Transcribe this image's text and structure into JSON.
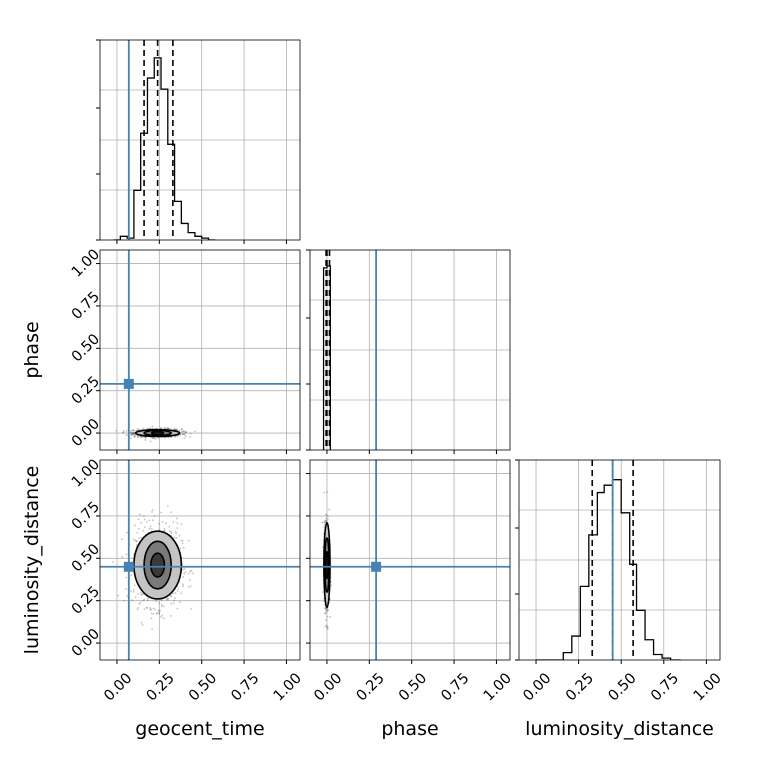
{
  "chart_data": {
    "type": "corner",
    "parameters": [
      "geocent_time",
      "phase",
      "luminosity_distance"
    ],
    "axis_labels": {
      "x": [
        "geocent_time",
        "phase",
        "luminosity_distance"
      ],
      "y": [
        "",
        "phase",
        "luminosity_distance"
      ]
    },
    "range": [
      -0.1,
      1.08
    ],
    "ticks": [
      0.0,
      0.25,
      0.5,
      0.75,
      1.0
    ],
    "tick_labels": [
      "0.00",
      "0.25",
      "0.50",
      "0.75",
      "1.00"
    ],
    "grid": true,
    "truth_color": "#4682b4",
    "truths": {
      "geocent_time": 0.07,
      "phase": 0.29,
      "luminosity_distance": 0.45
    },
    "histograms": {
      "geocent_time": {
        "bin_edges": [
          -0.02,
          0.02,
          0.06,
          0.1,
          0.14,
          0.18,
          0.22,
          0.26,
          0.3,
          0.34,
          0.38,
          0.42,
          0.46,
          0.5,
          0.54,
          0.58
        ],
        "heights": [
          0.0,
          0.02,
          0.01,
          0.27,
          0.58,
          0.88,
          0.99,
          0.82,
          0.52,
          0.21,
          0.09,
          0.04,
          0.02,
          0.01,
          0.0
        ],
        "quantiles": [
          0.16,
          0.24,
          0.33
        ]
      },
      "phase": {
        "bin_edges": [
          -0.02,
          0.0,
          0.02
        ],
        "heights": [
          0.99,
          1.0
        ],
        "quantiles": [
          -0.005,
          0.0,
          0.015
        ]
      },
      "luminosity_distance": {
        "bin_edges": [
          0.0,
          0.08,
          0.16,
          0.21,
          0.26,
          0.31,
          0.36,
          0.4,
          0.45,
          0.5,
          0.55,
          0.59,
          0.64,
          0.69,
          0.74,
          0.79,
          0.85
        ],
        "heights": [
          0.0,
          0.0,
          0.04,
          0.13,
          0.4,
          0.68,
          0.91,
          0.95,
          0.98,
          0.8,
          0.52,
          0.27,
          0.11,
          0.03,
          0.01,
          0.0
        ],
        "quantiles": [
          0.33,
          0.45,
          0.57
        ]
      }
    },
    "scatter_2d": {
      "phase_vs_geocent_time": {
        "center": [
          0.24,
          0.0
        ],
        "spread": [
          0.07,
          0.012
        ],
        "contour_levels": [
          {
            "rx": 0.035,
            "ry": 0.008,
            "fill": "#303030"
          },
          {
            "rx": 0.08,
            "ry": 0.015,
            "fill": "#7a7a7a"
          },
          {
            "rx": 0.13,
            "ry": 0.02,
            "fill": "#bdbdbd"
          }
        ]
      },
      "luminosity_distance_vs_geocent_time": {
        "center": [
          0.24,
          0.46
        ],
        "spread": [
          0.07,
          0.12
        ],
        "contour_levels": [
          {
            "rx": 0.04,
            "ry": 0.07,
            "fill": "#3a3a3a"
          },
          {
            "rx": 0.08,
            "ry": 0.14,
            "fill": "#7a7a7a"
          },
          {
            "rx": 0.14,
            "ry": 0.2,
            "fill": "#c4c4c4"
          }
        ]
      },
      "luminosity_distance_vs_phase": {
        "center": [
          0.0,
          0.46
        ],
        "spread": [
          0.008,
          0.12
        ],
        "contour_levels": [
          {
            "rx": 0.008,
            "ry": 0.08,
            "fill": "#202020"
          },
          {
            "rx": 0.013,
            "ry": 0.16,
            "fill": "#808080"
          },
          {
            "rx": 0.018,
            "ry": 0.25,
            "fill": "#cccccc"
          }
        ]
      }
    }
  }
}
